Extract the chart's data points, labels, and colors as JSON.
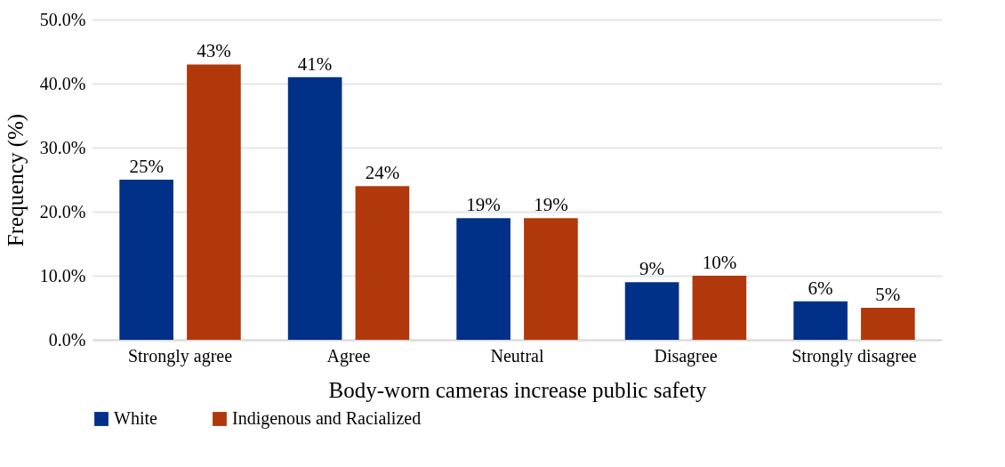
{
  "chart_data": {
    "type": "bar",
    "xlabel": "Body-worn cameras increase public safety",
    "ylabel": "Frequency (%)",
    "categories": [
      "Strongly agree",
      "Agree",
      "Neutral",
      "Disagree",
      "Strongly disagree"
    ],
    "series": [
      {
        "name": "White",
        "color": "#003087",
        "values": [
          25,
          41,
          19,
          9,
          6
        ],
        "value_labels": [
          "25%",
          "41%",
          "19%",
          "9%",
          "6%"
        ]
      },
      {
        "name": "Indigenous and Racialized",
        "color": "#b0380b",
        "values": [
          43,
          24,
          19,
          10,
          5
        ],
        "value_labels": [
          "43%",
          "24%",
          "19%",
          "10%",
          "5%"
        ]
      }
    ],
    "ylim": [
      0,
      50
    ],
    "yticks": [
      {
        "value": 0,
        "label": "0.0%"
      },
      {
        "value": 10,
        "label": "10.0%"
      },
      {
        "value": 20,
        "label": "20.0%"
      },
      {
        "value": 30,
        "label": "30.0%"
      },
      {
        "value": 40,
        "label": "40.0%"
      },
      {
        "value": 50,
        "label": "50.0%"
      }
    ],
    "grid": "y",
    "legend": "bottom"
  }
}
